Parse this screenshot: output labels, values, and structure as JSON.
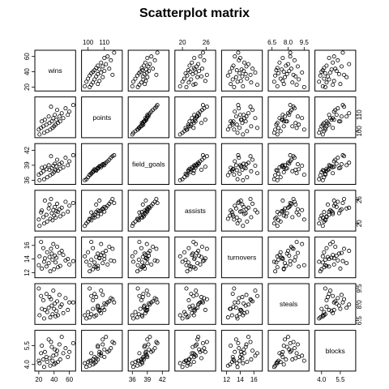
{
  "chart_data": {
    "type": "scatter",
    "subtype": "scatterplot-matrix",
    "title": "Scatterplot matrix",
    "variables": [
      {
        "name": "wins",
        "range": [
          17,
          66
        ],
        "ticks": [
          "20",
          "40",
          "60"
        ]
      },
      {
        "name": "points",
        "range": [
          97,
          120
        ],
        "ticks": [
          "100",
          "110"
        ]
      },
      {
        "name": "field_goals",
        "range": [
          35.5,
          43
        ],
        "ticks": [
          "36",
          "39",
          "42"
        ]
      },
      {
        "name": "assists",
        "range": [
          18.5,
          28
        ],
        "ticks": [
          "20",
          "26"
        ]
      },
      {
        "name": "turnovers",
        "range": [
          11.5,
          17
        ],
        "ticks": [
          "12",
          "14",
          "16"
        ]
      },
      {
        "name": "steals",
        "range": [
          6.3,
          9.8
        ],
        "ticks": [
          "6.5",
          "8.0",
          "9.5"
        ]
      },
      {
        "name": "blocks",
        "range": [
          3.6,
          6.6
        ],
        "ticks": [
          "4.0",
          "5.5"
        ]
      }
    ],
    "columns": [
      "wins",
      "points",
      "field_goals",
      "assists",
      "turnovers",
      "steals",
      "blocks"
    ],
    "rows": [
      [
        60,
        112,
        39.8,
        24.5,
        13.2,
        8.2,
        5.0
      ],
      [
        58,
        110,
        39.0,
        23.0,
        14.0,
        7.5,
        4.6
      ],
      [
        55,
        114,
        40.5,
        25.5,
        13.8,
        8.6,
        5.3
      ],
      [
        52,
        108,
        38.6,
        22.4,
        14.6,
        7.2,
        4.9
      ],
      [
        50,
        111,
        39.5,
        24.0,
        15.2,
        8.0,
        6.2
      ],
      [
        48,
        106,
        38.3,
        21.8,
        13.0,
        7.8,
        4.4
      ],
      [
        47,
        109,
        39.2,
        23.6,
        14.9,
        8.9,
        5.6
      ],
      [
        45,
        105,
        37.9,
        22.9,
        12.8,
        7.0,
        4.2
      ],
      [
        44,
        113,
        40.1,
        25.0,
        15.8,
        8.3,
        5.1
      ],
      [
        43,
        107,
        38.8,
        23.1,
        14.2,
        7.4,
        4.8
      ],
      [
        42,
        104,
        38.0,
        21.5,
        13.5,
        6.9,
        4.1
      ],
      [
        41,
        110,
        39.3,
        24.2,
        14.5,
        8.1,
        5.2
      ],
      [
        40,
        103,
        37.6,
        22.0,
        12.5,
        7.6,
        4.0
      ],
      [
        39,
        108,
        38.9,
        23.4,
        16.2,
        9.3,
        4.7
      ],
      [
        38,
        102,
        37.3,
        20.8,
        13.9,
        7.1,
        4.3
      ],
      [
        37,
        106,
        38.4,
        22.6,
        14.8,
        7.9,
        5.4
      ],
      [
        36,
        115,
        40.8,
        26.2,
        15.5,
        8.5,
        5.8
      ],
      [
        35,
        101,
        37.0,
        21.2,
        12.2,
        6.8,
        3.9
      ],
      [
        34,
        105,
        38.1,
        24.8,
        14.3,
        8.7,
        4.5
      ],
      [
        33,
        109,
        39.0,
        23.8,
        13.4,
        7.7,
        6.0
      ],
      [
        31,
        100,
        36.6,
        20.5,
        15.0,
        7.3,
        4.2
      ],
      [
        30,
        104,
        38.2,
        22.2,
        12.9,
        9.0,
        4.6
      ],
      [
        28,
        107,
        38.7,
        25.8,
        14.1,
        7.5,
        5.0
      ],
      [
        27,
        99,
        36.2,
        20.0,
        13.6,
        6.7,
        3.8
      ],
      [
        26,
        103,
        37.8,
        21.6,
        15.6,
        8.4,
        4.4
      ],
      [
        24,
        106,
        38.5,
        23.3,
        12.6,
        7.6,
        5.5
      ],
      [
        23,
        102,
        37.4,
        22.8,
        16.5,
        8.8,
        4.9
      ],
      [
        21,
        98,
        36.0,
        19.4,
        14.4,
        7.0,
        4.1
      ],
      [
        20,
        101,
        37.1,
        21.0,
        13.1,
        9.5,
        4.3
      ],
      [
        65,
        116,
        41.0,
        25.2,
        13.7,
        8.2,
        5.7
      ]
    ]
  }
}
